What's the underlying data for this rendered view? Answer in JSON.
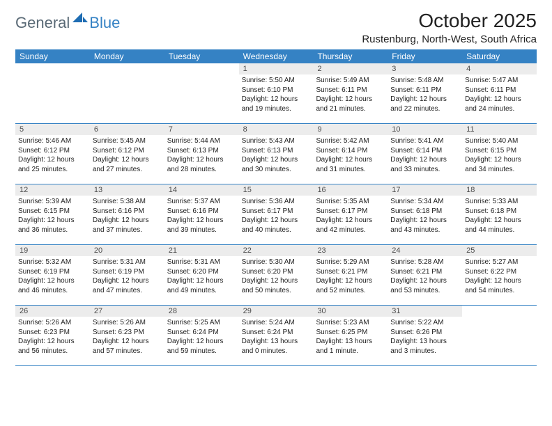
{
  "brand": {
    "general": "General",
    "blue": "Blue"
  },
  "title": "October 2025",
  "location": "Rustenburg, North-West, South Africa",
  "colors": {
    "header_bg": "#3582c4",
    "header_text": "#ffffff",
    "daynum_bg": "#ececec",
    "border": "#3582c4",
    "text": "#222222",
    "logo_gray": "#5a6a76",
    "logo_blue": "#3582c4"
  },
  "weekdays": [
    "Sunday",
    "Monday",
    "Tuesday",
    "Wednesday",
    "Thursday",
    "Friday",
    "Saturday"
  ],
  "weeks": [
    [
      {
        "n": "",
        "lines": []
      },
      {
        "n": "",
        "lines": []
      },
      {
        "n": "",
        "lines": []
      },
      {
        "n": "1",
        "lines": [
          "Sunrise: 5:50 AM",
          "Sunset: 6:10 PM",
          "Daylight: 12 hours",
          "and 19 minutes."
        ]
      },
      {
        "n": "2",
        "lines": [
          "Sunrise: 5:49 AM",
          "Sunset: 6:11 PM",
          "Daylight: 12 hours",
          "and 21 minutes."
        ]
      },
      {
        "n": "3",
        "lines": [
          "Sunrise: 5:48 AM",
          "Sunset: 6:11 PM",
          "Daylight: 12 hours",
          "and 22 minutes."
        ]
      },
      {
        "n": "4",
        "lines": [
          "Sunrise: 5:47 AM",
          "Sunset: 6:11 PM",
          "Daylight: 12 hours",
          "and 24 minutes."
        ]
      }
    ],
    [
      {
        "n": "5",
        "lines": [
          "Sunrise: 5:46 AM",
          "Sunset: 6:12 PM",
          "Daylight: 12 hours",
          "and 25 minutes."
        ]
      },
      {
        "n": "6",
        "lines": [
          "Sunrise: 5:45 AM",
          "Sunset: 6:12 PM",
          "Daylight: 12 hours",
          "and 27 minutes."
        ]
      },
      {
        "n": "7",
        "lines": [
          "Sunrise: 5:44 AM",
          "Sunset: 6:13 PM",
          "Daylight: 12 hours",
          "and 28 minutes."
        ]
      },
      {
        "n": "8",
        "lines": [
          "Sunrise: 5:43 AM",
          "Sunset: 6:13 PM",
          "Daylight: 12 hours",
          "and 30 minutes."
        ]
      },
      {
        "n": "9",
        "lines": [
          "Sunrise: 5:42 AM",
          "Sunset: 6:14 PM",
          "Daylight: 12 hours",
          "and 31 minutes."
        ]
      },
      {
        "n": "10",
        "lines": [
          "Sunrise: 5:41 AM",
          "Sunset: 6:14 PM",
          "Daylight: 12 hours",
          "and 33 minutes."
        ]
      },
      {
        "n": "11",
        "lines": [
          "Sunrise: 5:40 AM",
          "Sunset: 6:15 PM",
          "Daylight: 12 hours",
          "and 34 minutes."
        ]
      }
    ],
    [
      {
        "n": "12",
        "lines": [
          "Sunrise: 5:39 AM",
          "Sunset: 6:15 PM",
          "Daylight: 12 hours",
          "and 36 minutes."
        ]
      },
      {
        "n": "13",
        "lines": [
          "Sunrise: 5:38 AM",
          "Sunset: 6:16 PM",
          "Daylight: 12 hours",
          "and 37 minutes."
        ]
      },
      {
        "n": "14",
        "lines": [
          "Sunrise: 5:37 AM",
          "Sunset: 6:16 PM",
          "Daylight: 12 hours",
          "and 39 minutes."
        ]
      },
      {
        "n": "15",
        "lines": [
          "Sunrise: 5:36 AM",
          "Sunset: 6:17 PM",
          "Daylight: 12 hours",
          "and 40 minutes."
        ]
      },
      {
        "n": "16",
        "lines": [
          "Sunrise: 5:35 AM",
          "Sunset: 6:17 PM",
          "Daylight: 12 hours",
          "and 42 minutes."
        ]
      },
      {
        "n": "17",
        "lines": [
          "Sunrise: 5:34 AM",
          "Sunset: 6:18 PM",
          "Daylight: 12 hours",
          "and 43 minutes."
        ]
      },
      {
        "n": "18",
        "lines": [
          "Sunrise: 5:33 AM",
          "Sunset: 6:18 PM",
          "Daylight: 12 hours",
          "and 44 minutes."
        ]
      }
    ],
    [
      {
        "n": "19",
        "lines": [
          "Sunrise: 5:32 AM",
          "Sunset: 6:19 PM",
          "Daylight: 12 hours",
          "and 46 minutes."
        ]
      },
      {
        "n": "20",
        "lines": [
          "Sunrise: 5:31 AM",
          "Sunset: 6:19 PM",
          "Daylight: 12 hours",
          "and 47 minutes."
        ]
      },
      {
        "n": "21",
        "lines": [
          "Sunrise: 5:31 AM",
          "Sunset: 6:20 PM",
          "Daylight: 12 hours",
          "and 49 minutes."
        ]
      },
      {
        "n": "22",
        "lines": [
          "Sunrise: 5:30 AM",
          "Sunset: 6:20 PM",
          "Daylight: 12 hours",
          "and 50 minutes."
        ]
      },
      {
        "n": "23",
        "lines": [
          "Sunrise: 5:29 AM",
          "Sunset: 6:21 PM",
          "Daylight: 12 hours",
          "and 52 minutes."
        ]
      },
      {
        "n": "24",
        "lines": [
          "Sunrise: 5:28 AM",
          "Sunset: 6:21 PM",
          "Daylight: 12 hours",
          "and 53 minutes."
        ]
      },
      {
        "n": "25",
        "lines": [
          "Sunrise: 5:27 AM",
          "Sunset: 6:22 PM",
          "Daylight: 12 hours",
          "and 54 minutes."
        ]
      }
    ],
    [
      {
        "n": "26",
        "lines": [
          "Sunrise: 5:26 AM",
          "Sunset: 6:23 PM",
          "Daylight: 12 hours",
          "and 56 minutes."
        ]
      },
      {
        "n": "27",
        "lines": [
          "Sunrise: 5:26 AM",
          "Sunset: 6:23 PM",
          "Daylight: 12 hours",
          "and 57 minutes."
        ]
      },
      {
        "n": "28",
        "lines": [
          "Sunrise: 5:25 AM",
          "Sunset: 6:24 PM",
          "Daylight: 12 hours",
          "and 59 minutes."
        ]
      },
      {
        "n": "29",
        "lines": [
          "Sunrise: 5:24 AM",
          "Sunset: 6:24 PM",
          "Daylight: 13 hours",
          "and 0 minutes."
        ]
      },
      {
        "n": "30",
        "lines": [
          "Sunrise: 5:23 AM",
          "Sunset: 6:25 PM",
          "Daylight: 13 hours",
          "and 1 minute."
        ]
      },
      {
        "n": "31",
        "lines": [
          "Sunrise: 5:22 AM",
          "Sunset: 6:26 PM",
          "Daylight: 13 hours",
          "and 3 minutes."
        ]
      },
      {
        "n": "",
        "lines": []
      }
    ]
  ]
}
